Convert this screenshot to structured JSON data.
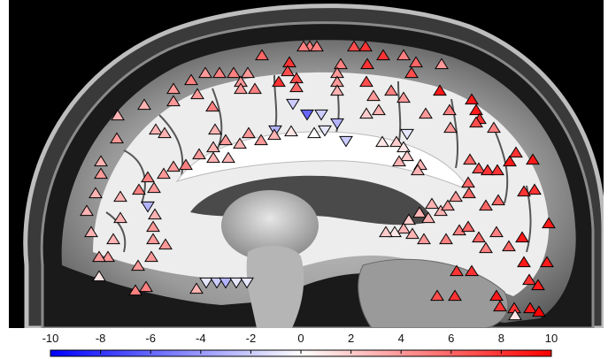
{
  "colorbar": {
    "min": -10,
    "max": 10,
    "colors": {
      "negative": "#0000ff",
      "zero": "#ffffff",
      "positive": "#ff0000"
    },
    "tick_labels": [
      "-10",
      "-8",
      "-6",
      "-4",
      "-2",
      "0",
      "2",
      "4",
      "6",
      "8",
      "10"
    ],
    "tick_values": [
      -10,
      -8,
      -6,
      -4,
      -2,
      0,
      2,
      4,
      6,
      8,
      10
    ]
  },
  "markers": {
    "up_shape": "triangle-up-icon",
    "down_shape": "triangle-down-icon",
    "edge_color": "#000000"
  }
}
